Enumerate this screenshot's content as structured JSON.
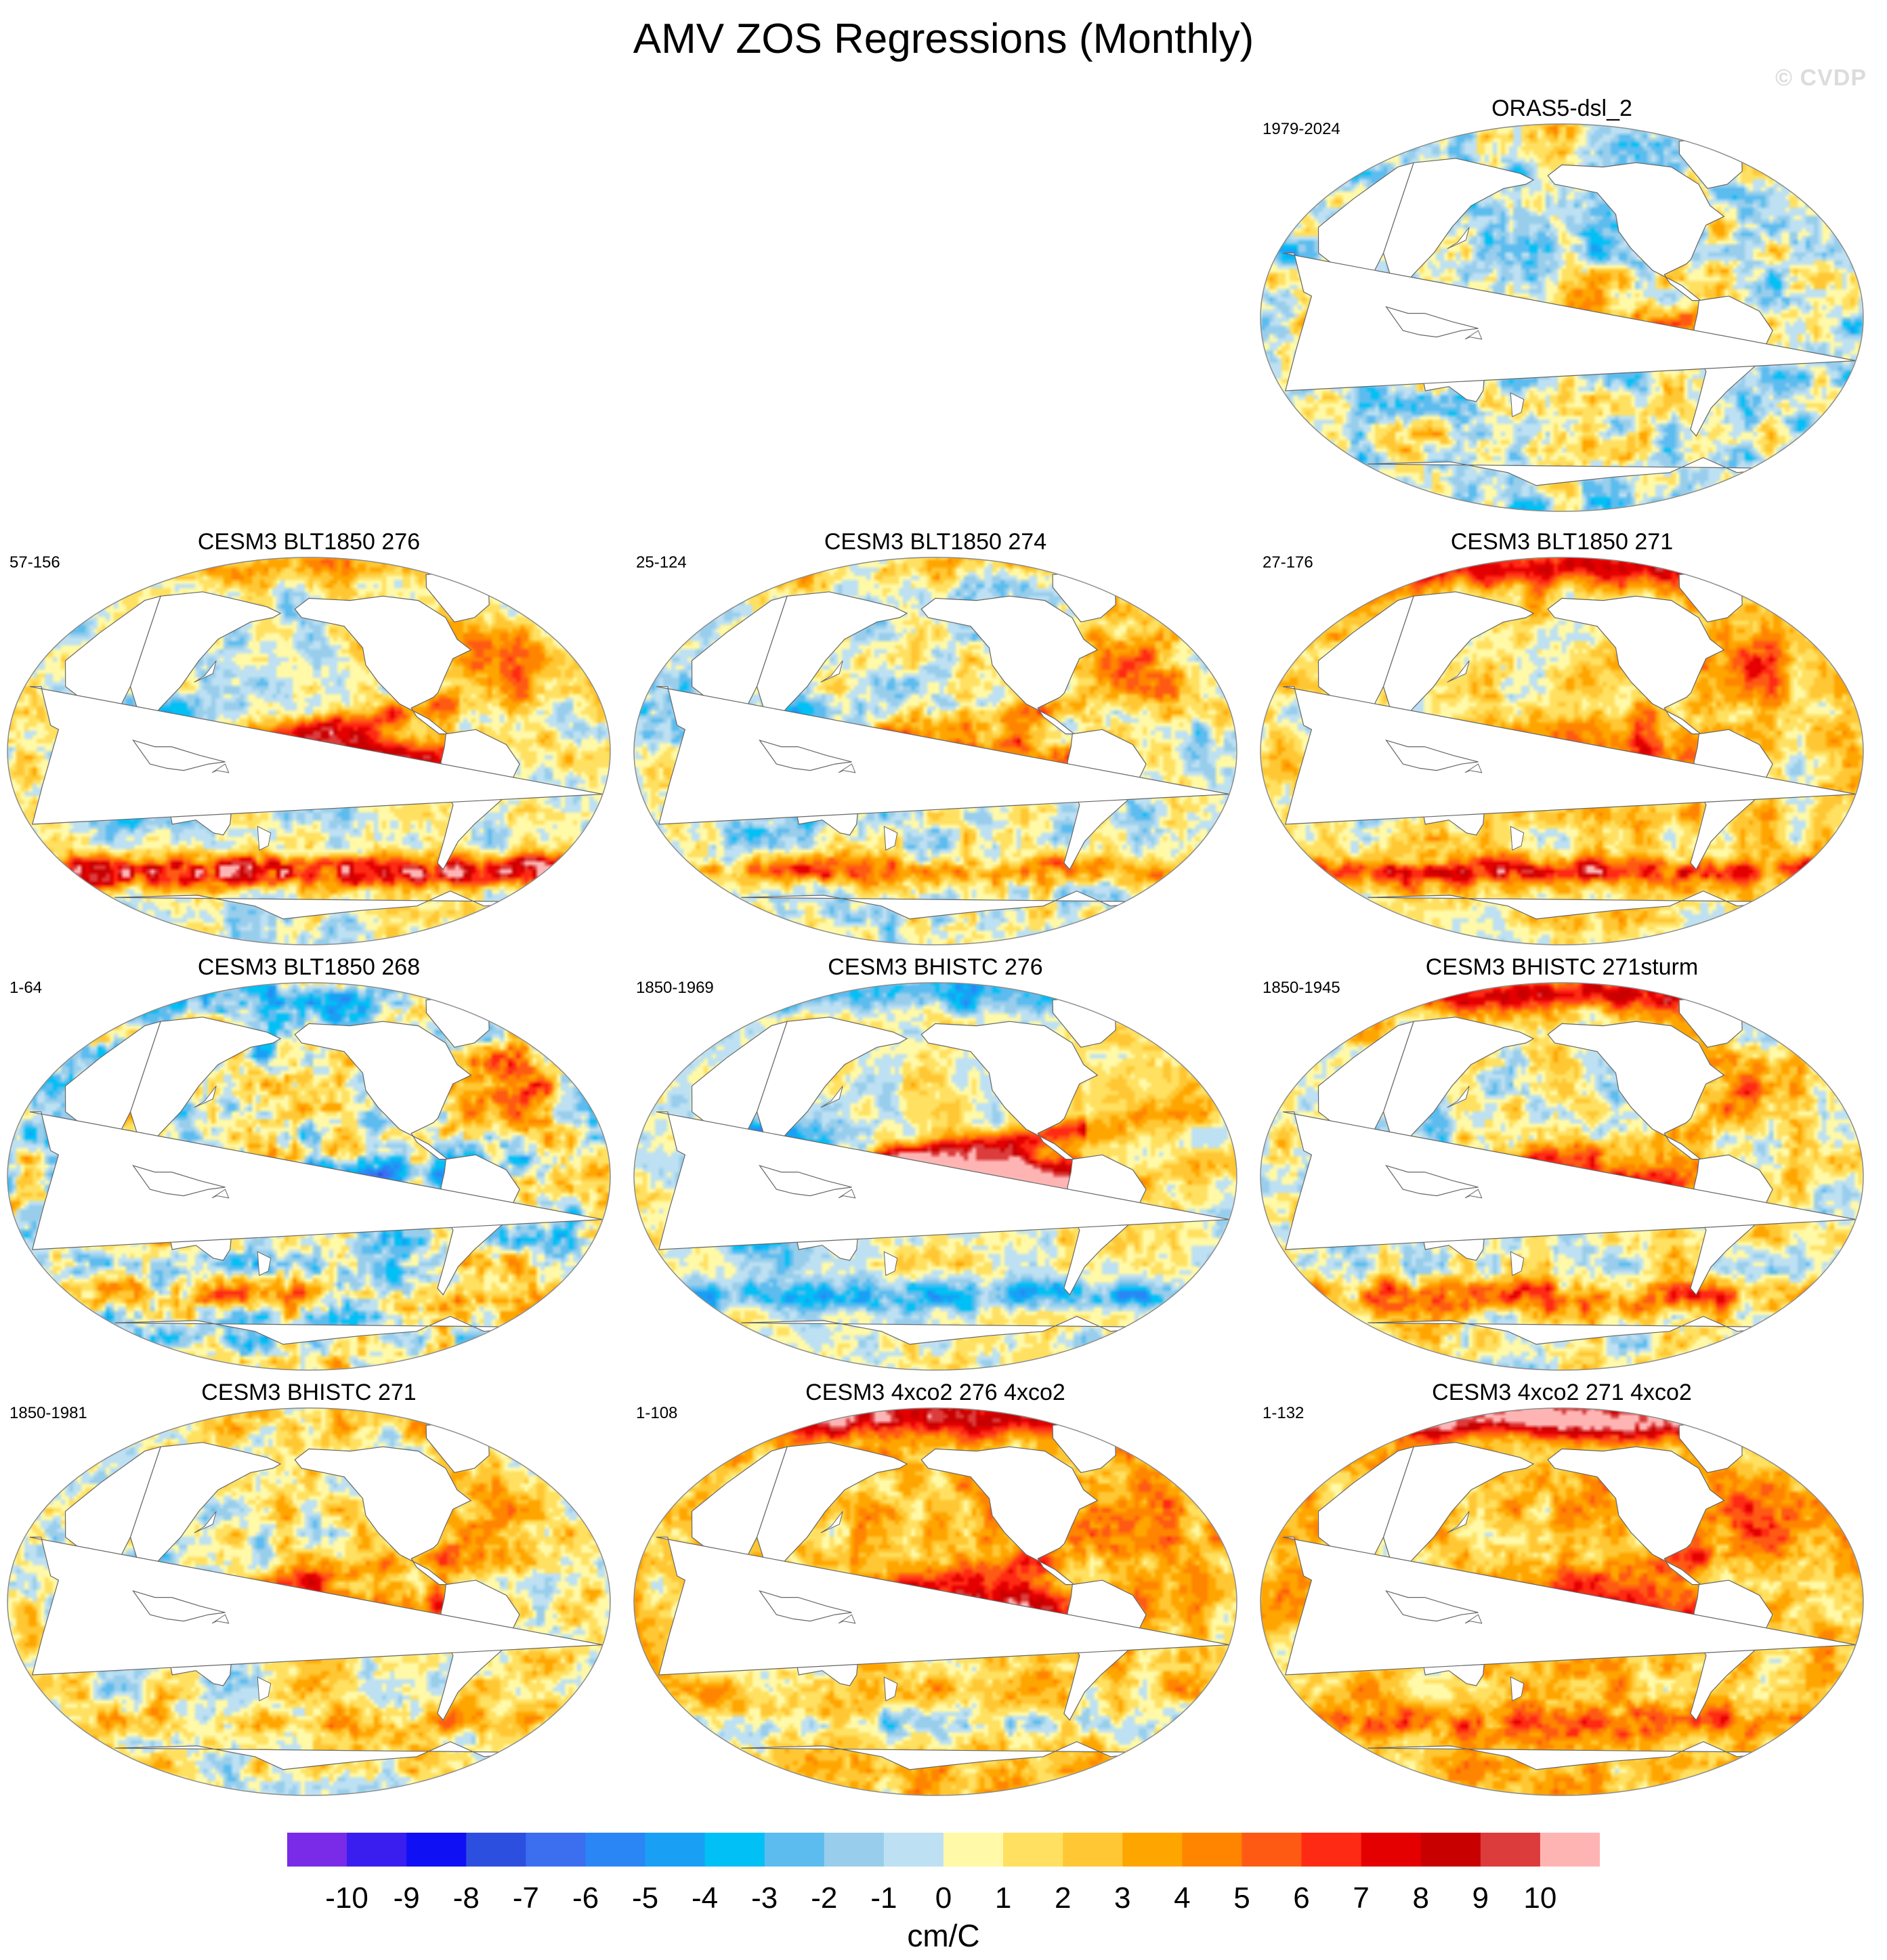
{
  "watermark": "© CVDP",
  "chart_data": {
    "type": "heatmap",
    "title": "AMV ZOS Regressions (Monthly)",
    "projection": "Robinson (Pacific-centered)",
    "colorbar": {
      "unit": "cm/C",
      "ticks": [
        "-10",
        "-9",
        "-8",
        "-7",
        "-6",
        "-5",
        "-4",
        "-3",
        "-2",
        "-1",
        "0",
        "1",
        "2",
        "3",
        "4",
        "5",
        "6",
        "7",
        "8",
        "9",
        "10"
      ],
      "colors": [
        "#7a2be8",
        "#3a1ef0",
        "#1010f5",
        "#2d4fe0",
        "#3c6ef0",
        "#2a86f5",
        "#19a0f5",
        "#00c0f5",
        "#5cbcef",
        "#98ceec",
        "#bde0f3",
        "#fff9a8",
        "#ffe060",
        "#ffc733",
        "#ffa500",
        "#ff8500",
        "#ff5a14",
        "#ff2a14",
        "#e40000",
        "#c80000",
        "#dc3c3c",
        "#ffb4b4"
      ]
    },
    "panels": [
      {
        "title": "ORAS5-dsl_2",
        "years": "1979-2024",
        "pattern": {
          "nino": 1,
          "merid": 0.4,
          "indian": 0.2,
          "natl": 0.4,
          "arctic": 0.2,
          "south": 0.3,
          "noise": 0.9,
          "bias": -0.7
        }
      },
      {
        "title": "CESM3 BLT1850 276",
        "years": "57-156",
        "pattern": {
          "nino": 1.6,
          "merid": 1.1,
          "indian": -1.2,
          "natl": 1.4,
          "arctic": 0.5,
          "south": 1.8,
          "noise": 0.7,
          "bias": 0.3
        }
      },
      {
        "title": "CESM3 BLT1850 274",
        "years": "25-124",
        "pattern": {
          "nino": 1.1,
          "merid": 0.8,
          "indian": -1.0,
          "natl": 1.2,
          "arctic": 0.4,
          "south": 0.9,
          "noise": 0.8,
          "bias": 0.0
        }
      },
      {
        "title": "CESM3 BLT1850 271",
        "years": "27-176",
        "pattern": {
          "nino": 0.9,
          "merid": 0.5,
          "indian": -0.5,
          "natl": 1.2,
          "arctic": 1.2,
          "south": 1.2,
          "noise": 0.7,
          "bias": 1.4
        }
      },
      {
        "title": "CESM3 BLT1850 268",
        "years": "1-64",
        "pattern": {
          "nino": -1.0,
          "merid": 0.6,
          "indian": 0.5,
          "natl": 1.4,
          "arctic": -0.5,
          "south": 0.6,
          "noise": 1.1,
          "bias": 0.0
        }
      },
      {
        "title": "CESM3 BHISTC 276",
        "years": "1850-1969",
        "pattern": {
          "nino": 2.8,
          "merid": 1.6,
          "indian": -2.0,
          "natl": 0.6,
          "arctic": -0.8,
          "south": -0.8,
          "noise": 0.6,
          "bias": 0.6
        }
      },
      {
        "title": "CESM3 BHISTC 271sturm",
        "years": "1850-1945",
        "pattern": {
          "nino": 1.0,
          "merid": 0.7,
          "indian": -0.8,
          "natl": 0.9,
          "arctic": 1.4,
          "south": 1.0,
          "noise": 0.8,
          "bias": 0.7
        }
      },
      {
        "title": "CESM3 BHISTC 271",
        "years": "1850-1981",
        "pattern": {
          "nino": 1.0,
          "merid": 0.6,
          "indian": -1.0,
          "natl": 0.8,
          "arctic": 0.3,
          "south": 0.4,
          "noise": 0.8,
          "bias": 0.9
        }
      },
      {
        "title": "CESM3 4xco2 276 4xco2",
        "years": "1-108",
        "pattern": {
          "nino": 1.2,
          "merid": 0.5,
          "indian": -0.8,
          "natl": 0.8,
          "arctic": 1.4,
          "south": -0.6,
          "noise": 0.7,
          "bias": 2.4
        }
      },
      {
        "title": "CESM3 4xco2 271 4xco2",
        "years": "1-132",
        "pattern": {
          "nino": 0.9,
          "merid": 0.5,
          "indian": -0.6,
          "natl": 0.8,
          "arctic": 1.8,
          "south": 0.6,
          "noise": 0.7,
          "bias": 2.5
        }
      }
    ]
  }
}
